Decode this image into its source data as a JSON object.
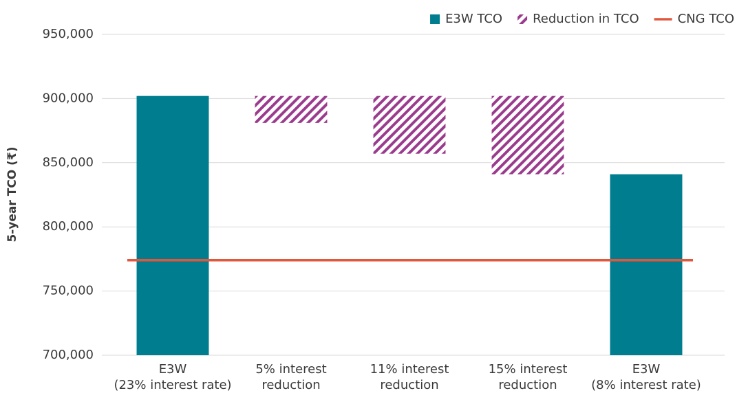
{
  "chart_data": {
    "type": "waterfall",
    "y_label": "5-year TCO (₹)",
    "categories": [
      [
        "E3W",
        "(23% interest rate)"
      ],
      [
        "5% interest",
        "reduction"
      ],
      [
        "11% interest",
        "reduction"
      ],
      [
        "15% interest",
        "reduction"
      ],
      [
        "E3W",
        "(8% interest rate)"
      ]
    ],
    "series": [
      {
        "name": "E3W TCO",
        "color": "#007d8f",
        "values": [
          902000,
          null,
          null,
          null,
          841000
        ]
      },
      {
        "name": "Reduction in TCO",
        "color": "#9b3b8e",
        "hatch": true,
        "values": [
          null,
          21000,
          45000,
          61000,
          null
        ]
      },
      {
        "name": "CNG TCO",
        "color": "#e0573c",
        "type": "line",
        "value": 774000
      }
    ],
    "ylim": [
      700000,
      950000
    ],
    "yticks": [
      {
        "value": 700000,
        "label": "700,000"
      },
      {
        "value": 750000,
        "label": "750,000"
      },
      {
        "value": 800000,
        "label": "800,000"
      },
      {
        "value": 850000,
        "label": "850,000"
      },
      {
        "value": 900000,
        "label": "900,000"
      },
      {
        "value": 950000,
        "label": "950,000"
      }
    ],
    "grid": true,
    "legend": "top-right"
  }
}
